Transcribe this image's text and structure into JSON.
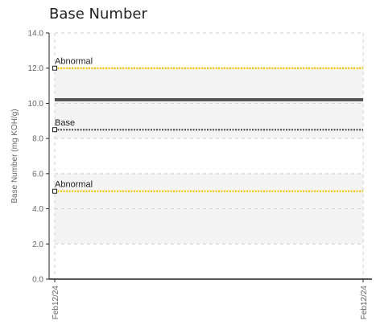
{
  "chart_data": {
    "type": "line",
    "title": "Base Number",
    "ylabel": "Base Number (mg KOH/g)",
    "xlabel": "",
    "ylim": [
      0,
      14
    ],
    "yticks": [
      "0.0",
      "2.0",
      "4.0",
      "6.0",
      "8.0",
      "10.0",
      "12.0",
      "14.0"
    ],
    "x_tick_labels": [
      "Feb12/24",
      "Feb12/24"
    ],
    "grid": true,
    "series": [
      {
        "values": [
          10.2,
          10.2
        ],
        "color": "#555555",
        "style": "solid"
      }
    ],
    "reference_lines": [
      {
        "label": "Abnormal",
        "value": 12.0,
        "color": "#f5c400",
        "style": "dotted"
      },
      {
        "label": "Base",
        "value": 8.5,
        "color": "#555555",
        "style": "dotted"
      },
      {
        "label": "Abnormal",
        "value": 5.0,
        "color": "#f5c400",
        "style": "dotted"
      }
    ],
    "shaded_bands": [
      [
        2,
        6
      ],
      [
        8,
        12
      ]
    ]
  }
}
